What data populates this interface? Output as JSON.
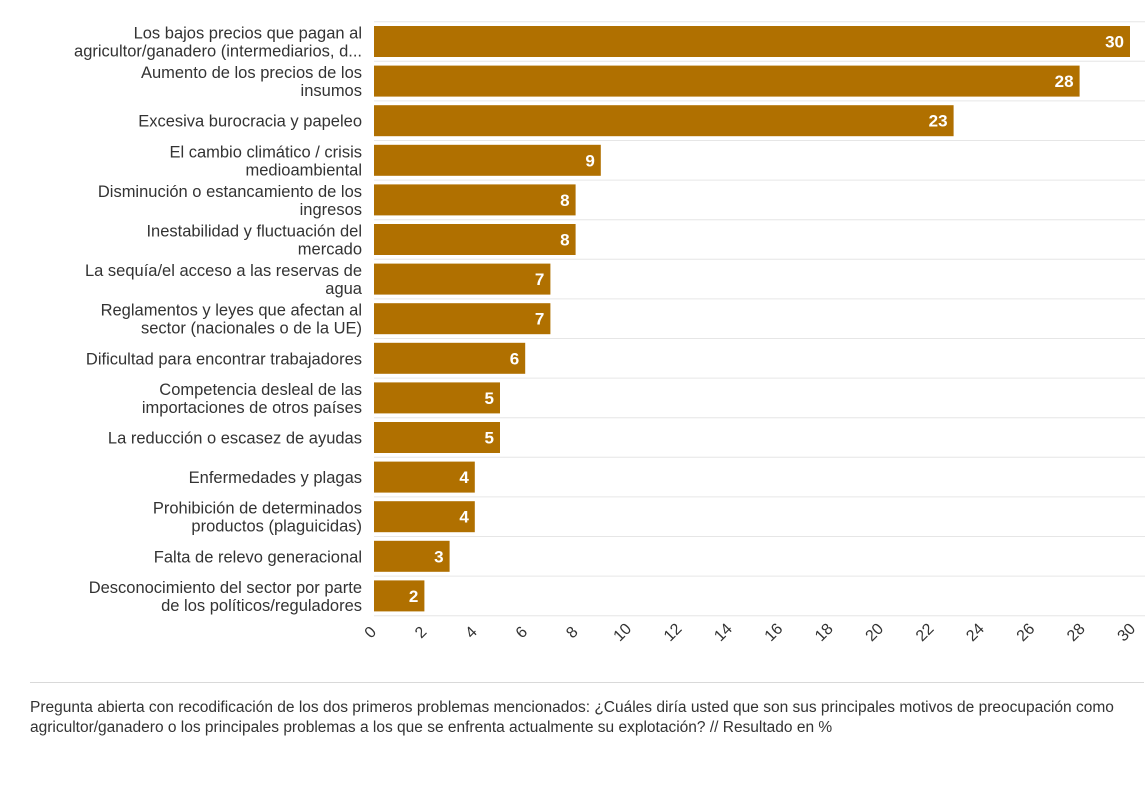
{
  "chart_data": {
    "type": "bar",
    "orientation": "horizontal",
    "categories": [
      [
        "Los bajos precios que pagan al",
        "agricultor/ganadero (intermediarios, d..."
      ],
      [
        "Aumento de los precios de los",
        "insumos"
      ],
      [
        "Excesiva burocracia y papeleo"
      ],
      [
        "El cambio climático / crisis",
        "medioambiental"
      ],
      [
        "Disminución o estancamiento de los",
        "ingresos"
      ],
      [
        "Inestabilidad y fluctuación del",
        "mercado"
      ],
      [
        "La sequía/el acceso a las reservas de",
        "agua"
      ],
      [
        "Reglamentos y leyes que afectan al",
        "sector (nacionales o de la UE)"
      ],
      [
        "Dificultad para encontrar trabajadores"
      ],
      [
        "Competencia desleal de las",
        "importaciones de otros países"
      ],
      [
        "La reducción o escasez de ayudas"
      ],
      [
        "Enfermedades y plagas"
      ],
      [
        "Prohibición de determinados",
        "productos (plaguicidas)"
      ],
      [
        "Falta de relevo generacional"
      ],
      [
        "Desconocimiento del sector por parte",
        "de los políticos/reguladores"
      ]
    ],
    "values": [
      30,
      28,
      23,
      9,
      8,
      8,
      7,
      7,
      6,
      5,
      5,
      4,
      4,
      3,
      2
    ],
    "xlim": [
      0,
      30
    ],
    "xticks": [
      0,
      2,
      4,
      6,
      8,
      10,
      12,
      14,
      16,
      18,
      20,
      22,
      24,
      26,
      28,
      30
    ],
    "grid": true,
    "bar_color": "#b07000",
    "value_label_color": "#ffffff",
    "title": "",
    "xlabel": "",
    "ylabel": ""
  },
  "footnote": "Pregunta abierta con recodificación de los dos primeros problemas mencionados: ¿Cuáles diría usted que son sus principales motivos de preocupación como agricultor/ganadero o los principales problemas a los que se enfrenta actualmente su explotación? // Resultado en %"
}
